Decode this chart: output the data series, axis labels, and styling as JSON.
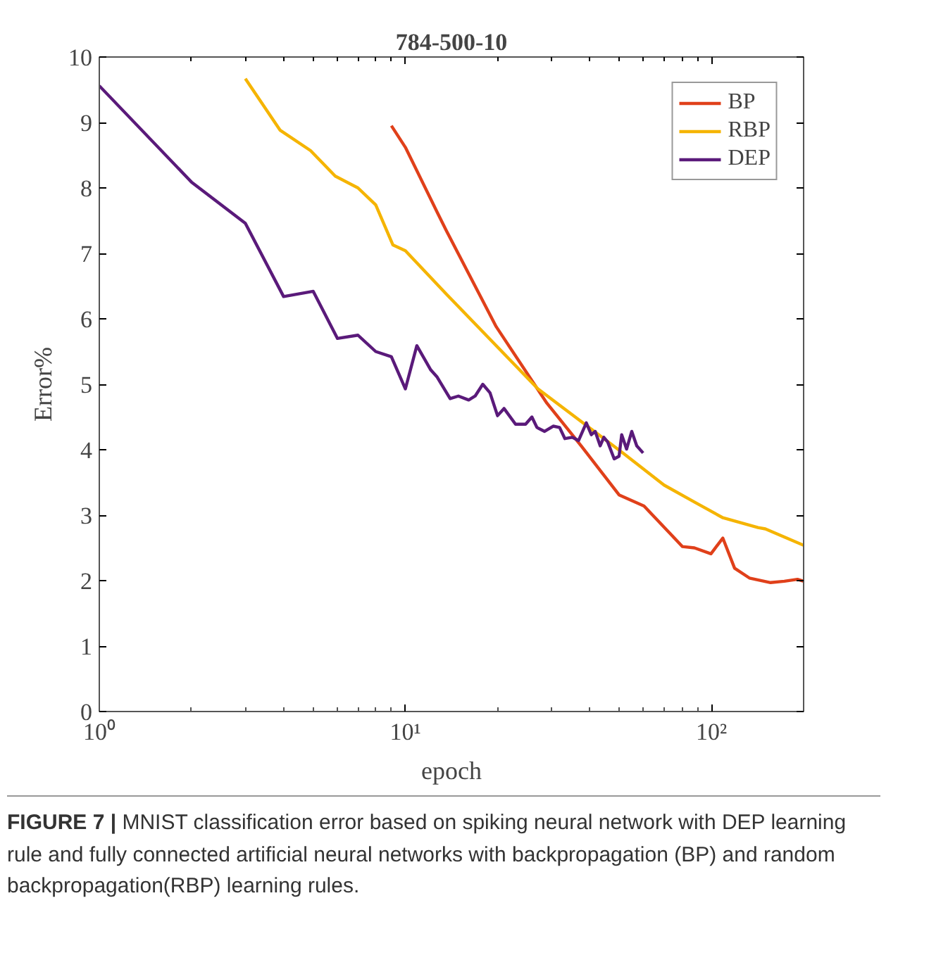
{
  "chart_data": {
    "type": "line",
    "title": "784-500-10",
    "xlabel": "epoch",
    "ylabel": "Error%",
    "log": "x",
    "xlim": [
      1,
      200
    ],
    "xticks": [
      {
        "value": 1,
        "label": "10⁰"
      },
      {
        "value": 10,
        "label": "10¹"
      },
      {
        "value": 100,
        "label": "10²"
      }
    ],
    "ylim": [
      0,
      10
    ],
    "yticks": [
      0,
      1,
      2,
      3,
      4,
      5,
      6,
      7,
      8,
      9,
      10
    ],
    "grid": false,
    "legend": "top right",
    "line_style": "solid",
    "marker": "none",
    "series": [
      {
        "name": "BP",
        "color": "#e0401a",
        "x": [
          9,
          10,
          12.7,
          13.6,
          19.8,
          29,
          37.5,
          49.9,
          60.2,
          80.4,
          88,
          99.6,
          108.9,
          119,
          133,
          156,
          173,
          191,
          200
        ],
        "values": [
          8.95,
          8.62,
          7.63,
          7.35,
          5.88,
          4.71,
          4.06,
          3.31,
          3.14,
          2.52,
          2.5,
          2.41,
          2.65,
          2.19,
          2.04,
          1.97,
          1.99,
          2.02,
          1.99
        ]
      },
      {
        "name": "RBP",
        "color": "#f5b400",
        "x": [
          3,
          3.9,
          4.9,
          5.9,
          7,
          8,
          9.1,
          10,
          13.6,
          27.1,
          51.4,
          70,
          88,
          109,
          142,
          150,
          200
        ],
        "values": [
          9.67,
          8.88,
          8.57,
          8.18,
          8.0,
          7.74,
          7.13,
          7.04,
          6.38,
          4.93,
          3.95,
          3.46,
          3.2,
          2.96,
          2.81,
          2.79,
          2.54
        ]
      },
      {
        "name": "DEP",
        "color": "#5a1a7a",
        "x": [
          1,
          2,
          3,
          4,
          5,
          6,
          7,
          8,
          9,
          10,
          10.9,
          12.1,
          12.7,
          14.0,
          14.9,
          16.1,
          16.9,
          17.9,
          18.9,
          20.0,
          21.0,
          22.9,
          24.7,
          25.9,
          26.9,
          28.5,
          30.4,
          31.9,
          33.2,
          35.1,
          36.8,
          39.0,
          40.5,
          41.7,
          43.3,
          44.5,
          45.8,
          48.1,
          49.9,
          50.9,
          52.8,
          54.9,
          57.0,
          59.8
        ],
        "values": [
          9.56,
          8.09,
          7.46,
          6.34,
          6.42,
          5.7,
          5.75,
          5.5,
          5.42,
          4.93,
          5.59,
          5.22,
          5.11,
          4.78,
          4.82,
          4.76,
          4.82,
          5.0,
          4.87,
          4.52,
          4.63,
          4.39,
          4.39,
          4.5,
          4.34,
          4.28,
          4.36,
          4.34,
          4.17,
          4.19,
          4.14,
          4.41,
          4.23,
          4.28,
          4.06,
          4.19,
          4.12,
          3.86,
          3.9,
          4.23,
          4.01,
          4.28,
          4.06,
          3.95
        ]
      }
    ],
    "annotations": [
      "FIGURE 7 | MNIST classification error based on spiking neural network with DEP learning rule and fully connected artificial neural networks with backpropagation (BP) and random backpropagation(RBP) learning rules."
    ]
  }
}
